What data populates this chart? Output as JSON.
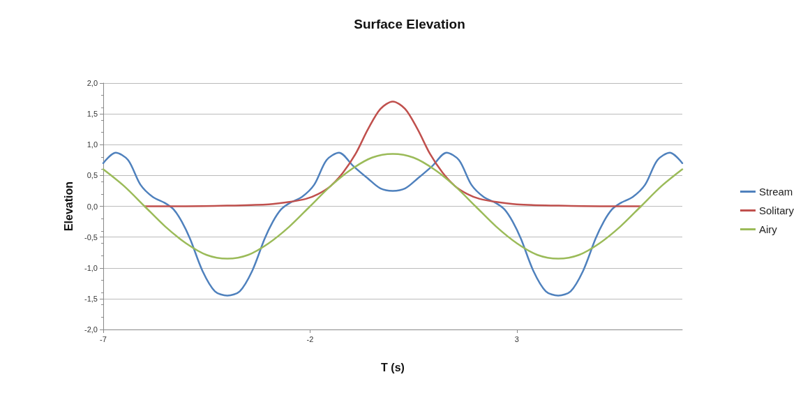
{
  "chart_data": {
    "type": "line",
    "title": "Surface Elevation",
    "xlabel": "T (s)",
    "ylabel": "Elevation",
    "xlim": [
      -7,
      7
    ],
    "xticks": [
      -7,
      -2,
      3
    ],
    "ylim": [
      -2,
      2
    ],
    "yticks": [
      {
        "value": -2,
        "label": "-2,0"
      },
      {
        "value": -1.5,
        "label": "-1,5"
      },
      {
        "value": -1,
        "label": "-1,0"
      },
      {
        "value": -0.5,
        "label": "-0,5"
      },
      {
        "value": 0,
        "label": "0,0"
      },
      {
        "value": 0.5,
        "label": "0,5"
      },
      {
        "value": 1,
        "label": "1,0"
      },
      {
        "value": 1.5,
        "label": "1,5"
      },
      {
        "value": 2,
        "label": "2,0"
      }
    ],
    "grid": "y",
    "legend": "right",
    "marker": "none",
    "line_style": "solid",
    "series": [
      {
        "name": "Stream",
        "color": "#4f81bd",
        "x": [
          -7,
          -6.7,
          -6.4,
          -6.1,
          -5.8,
          -5.5,
          -5.3,
          -5.1,
          -4.9,
          -4.6,
          -4.3,
          -4,
          -3.7,
          -3.4,
          -3.1,
          -2.9,
          -2.7,
          -2.5,
          -2.2,
          -1.9,
          -1.6,
          -1.3,
          -0.95,
          -0.6,
          -0.3,
          0,
          0.3,
          0.6,
          0.95,
          1.3,
          1.6,
          1.9,
          2.2,
          2.5,
          2.7,
          2.9,
          3.1,
          3.4,
          3.7,
          4,
          4.3,
          4.6,
          4.9,
          5.1,
          5.3,
          5.5,
          5.8,
          6.1,
          6.4,
          6.7,
          7
        ],
        "values": [
          0.7,
          0.87,
          0.75,
          0.35,
          0.15,
          0.05,
          -0.05,
          -0.25,
          -0.53,
          -1.05,
          -1.38,
          -1.45,
          -1.38,
          -1.05,
          -0.53,
          -0.25,
          -0.05,
          0.05,
          0.15,
          0.35,
          0.75,
          0.87,
          0.65,
          0.45,
          0.29,
          0.25,
          0.29,
          0.45,
          0.65,
          0.87,
          0.75,
          0.35,
          0.15,
          0.05,
          -0.05,
          -0.25,
          -0.53,
          -1.05,
          -1.38,
          -1.45,
          -1.38,
          -1.05,
          -0.53,
          -0.25,
          -0.05,
          0.05,
          0.15,
          0.35,
          0.75,
          0.87,
          0.7
        ]
      },
      {
        "name": "Solitary",
        "color": "#c0504d",
        "x": [
          -6,
          -5,
          -4,
          -3,
          -2.5,
          -2.1,
          -1.8,
          -1.5,
          -1.2,
          -0.9,
          -0.6,
          -0.3,
          0,
          0.3,
          0.6,
          0.9,
          1.2,
          1.5,
          1.8,
          2.1,
          2.5,
          3,
          4,
          5,
          6
        ],
        "values": [
          0,
          0,
          0.01,
          0.03,
          0.07,
          0.12,
          0.2,
          0.33,
          0.55,
          0.85,
          1.25,
          1.58,
          1.7,
          1.58,
          1.25,
          0.85,
          0.55,
          0.33,
          0.2,
          0.12,
          0.07,
          0.03,
          0.01,
          0,
          0
        ]
      },
      {
        "name": "Airy",
        "color": "#9bbb59",
        "x": [
          -7,
          -6.5,
          -6,
          -5.5,
          -5,
          -4.5,
          -4,
          -3.5,
          -3,
          -2.5,
          -2,
          -1.5,
          -1,
          -0.5,
          0,
          0.5,
          1,
          1.5,
          2,
          2.5,
          3,
          3.5,
          4,
          4.5,
          5,
          5.5,
          6,
          6.5,
          7
        ],
        "values": [
          0.6,
          0.33,
          0,
          -0.33,
          -0.6,
          -0.79,
          -0.85,
          -0.79,
          -0.6,
          -0.33,
          0,
          0.33,
          0.6,
          0.79,
          0.85,
          0.79,
          0.6,
          0.33,
          0,
          -0.33,
          -0.6,
          -0.79,
          -0.85,
          -0.79,
          -0.6,
          -0.33,
          0,
          0.33,
          0.6
        ]
      }
    ]
  }
}
